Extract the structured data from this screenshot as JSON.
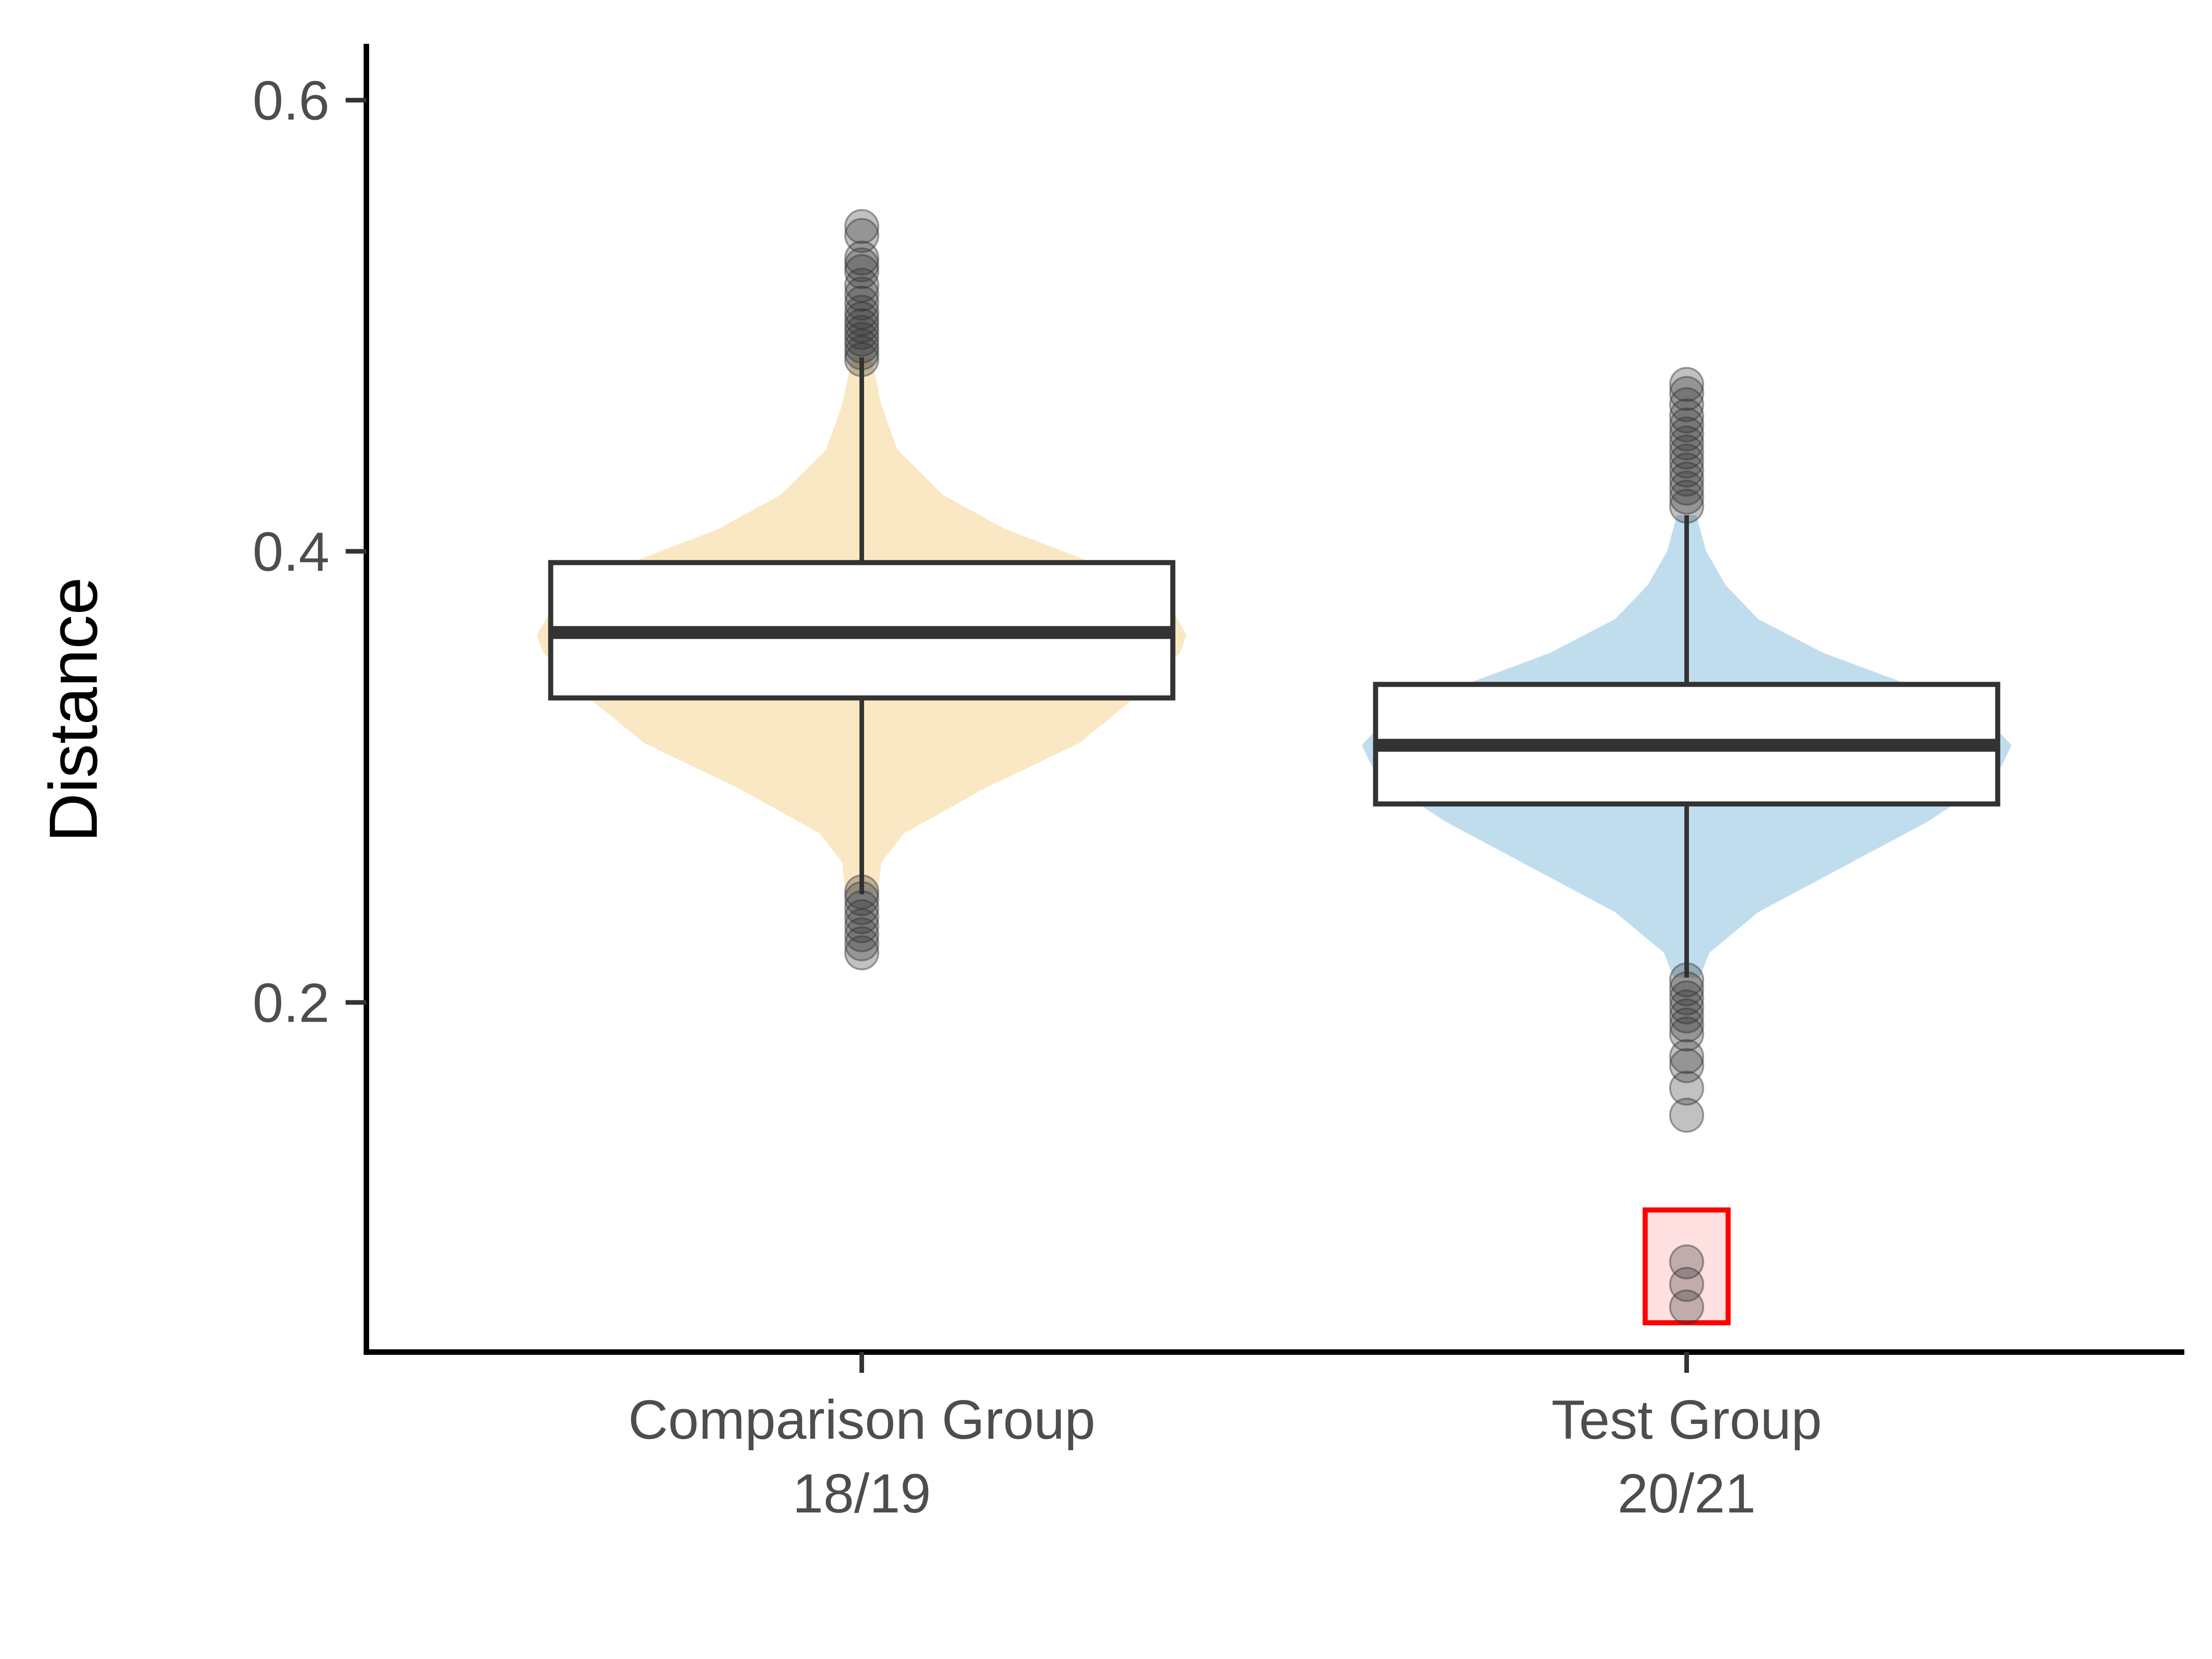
{
  "chart_data": {
    "type": "boxplot",
    "subtype": "violin-box",
    "title": "",
    "xlabel": "",
    "ylabel": "Distance",
    "ylim": [
      0.045,
      0.625
    ],
    "yticks": [
      0.2,
      0.4,
      0.6
    ],
    "ytick_labels": [
      "0.2",
      "0.4",
      "0.6"
    ],
    "grid": false,
    "legend": "none",
    "categories": [
      {
        "line1": "Comparison Group",
        "line2": "18/19"
      },
      {
        "line1": "Test Group",
        "line2": "20/21"
      }
    ],
    "series": [
      {
        "group": "Comparison Group 18/19",
        "color": "#f9e8c3",
        "box": {
          "q1": 0.335,
          "median": 0.364,
          "q3": 0.395
        },
        "whisker": [
          0.248,
          0.486
        ],
        "violin": [
          [
            0.248,
            0.05
          ],
          [
            0.262,
            0.06
          ],
          [
            0.275,
            0.13
          ],
          [
            0.295,
            0.38
          ],
          [
            0.315,
            0.67
          ],
          [
            0.335,
            0.84
          ],
          [
            0.355,
            0.98
          ],
          [
            0.363,
            1.0
          ],
          [
            0.375,
            0.95
          ],
          [
            0.395,
            0.71
          ],
          [
            0.41,
            0.44
          ],
          [
            0.425,
            0.25
          ],
          [
            0.445,
            0.11
          ],
          [
            0.465,
            0.06
          ],
          [
            0.486,
            0.03
          ]
        ],
        "outliers": [
          0.222,
          0.226,
          0.23,
          0.234,
          0.238,
          0.242,
          0.246,
          0.249,
          0.485,
          0.488,
          0.491,
          0.494,
          0.497,
          0.5,
          0.503,
          0.506,
          0.51,
          0.514,
          0.518,
          0.524,
          0.527,
          0.53,
          0.54,
          0.544
        ]
      },
      {
        "group": "Test Group 20/21",
        "color": "#c0ddee",
        "box": {
          "q1": 0.288,
          "median": 0.314,
          "q3": 0.341
        },
        "whisker": [
          0.211,
          0.416
        ],
        "violin": [
          [
            0.211,
            0.04
          ],
          [
            0.222,
            0.07
          ],
          [
            0.24,
            0.22
          ],
          [
            0.26,
            0.48
          ],
          [
            0.28,
            0.74
          ],
          [
            0.295,
            0.9
          ],
          [
            0.305,
            0.97
          ],
          [
            0.314,
            1.0
          ],
          [
            0.325,
            0.93
          ],
          [
            0.34,
            0.7
          ],
          [
            0.355,
            0.42
          ],
          [
            0.37,
            0.22
          ],
          [
            0.385,
            0.12
          ],
          [
            0.4,
            0.06
          ],
          [
            0.416,
            0.03
          ]
        ],
        "outliers": [
          0.15,
          0.162,
          0.172,
          0.176,
          0.186,
          0.19,
          0.194,
          0.198,
          0.202,
          0.206,
          0.21,
          0.42,
          0.424,
          0.428,
          0.432,
          0.436,
          0.44,
          0.444,
          0.448,
          0.452,
          0.456,
          0.46,
          0.465,
          0.47,
          0.474
        ]
      }
    ],
    "highlight": {
      "group": "Test Group 20/21",
      "color": "#ff0000",
      "y_range": [
        0.058,
        0.108
      ],
      "points": [
        0.065,
        0.075,
        0.085
      ]
    }
  }
}
